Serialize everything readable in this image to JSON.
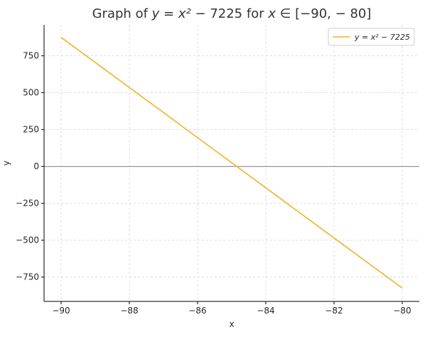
{
  "chart_data": {
    "type": "line",
    "title": "Graph of y = x² − 7225 for x ∈ [−90, − 80]",
    "xlabel": "x",
    "ylabel": "y",
    "xlim": [
      -90.5,
      -79.5
    ],
    "ylim": [
      -915,
      960
    ],
    "xticks": [
      -90,
      -88,
      -86,
      -84,
      -82,
      -80
    ],
    "xtick_labels": [
      "−90",
      "−88",
      "−86",
      "−84",
      "−82",
      "−80"
    ],
    "yticks": [
      -750,
      -500,
      -250,
      0,
      250,
      500,
      750
    ],
    "ytick_labels": [
      "−750",
      "−500",
      "−250",
      "0",
      "250",
      "500",
      "750"
    ],
    "grid": true,
    "zero_line": true,
    "legend_position": "top-right",
    "series": [
      {
        "name": "y = x² − 7225",
        "color": "#f5b027",
        "x": [
          -90,
          -80
        ],
        "y": [
          875,
          -825
        ]
      }
    ]
  }
}
